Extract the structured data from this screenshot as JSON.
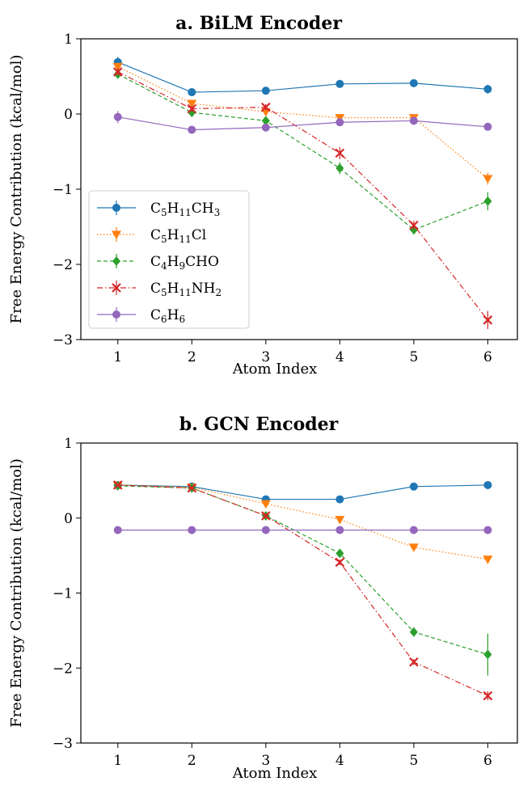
{
  "chart_data": [
    {
      "type": "line",
      "title": "a.  BiLM Encoder",
      "xlabel": "Atom Index",
      "ylabel": "Free Energy Contribution (kcal/mol)",
      "xlim": [
        0.5,
        6.4
      ],
      "ylim": [
        -3,
        1
      ],
      "xticks": [
        "1",
        "2",
        "3",
        "4",
        "5",
        "6"
      ],
      "yticks": [
        "1",
        "0",
        "−1",
        "−2",
        "−3"
      ],
      "x": [
        1,
        2,
        3,
        4,
        5,
        6
      ],
      "legend": "lower-left",
      "series": [
        {
          "name": "C5H11CH3",
          "color": "#1f77b4",
          "marker": "circle",
          "dash": "solid",
          "values": [
            0.69,
            0.29,
            0.31,
            0.4,
            0.41,
            0.33
          ],
          "errors": [
            0.07,
            0.03,
            0.03,
            0.03,
            0.03,
            0.06
          ]
        },
        {
          "name": "C5H11Cl",
          "color": "#ff7f0e",
          "marker": "triangle-down",
          "dash": "dotted",
          "values": [
            0.63,
            0.14,
            0.03,
            -0.05,
            -0.05,
            -0.86
          ],
          "errors": [
            0.05,
            0.04,
            0.05,
            0.04,
            0.03,
            0.08
          ]
        },
        {
          "name": "C4H9CHO",
          "color": "#2ca02c",
          "marker": "diamond",
          "dash": "dashed",
          "values": [
            0.53,
            0.02,
            -0.09,
            -0.72,
            -1.54,
            -1.16
          ],
          "errors": [
            0.05,
            0.04,
            0.04,
            0.08,
            0.06,
            0.12
          ]
        },
        {
          "name": "C5H11NH2",
          "color": "#d62728",
          "marker": "x",
          "dash": "dashdot",
          "values": [
            0.56,
            0.07,
            0.09,
            -0.52,
            -1.48,
            -2.74
          ],
          "errors": [
            0.05,
            0.04,
            0.04,
            0.08,
            0.06,
            0.12
          ]
        },
        {
          "name": "C6H6",
          "color": "#9467bd",
          "marker": "circle",
          "dash": "solid",
          "values": [
            -0.04,
            -0.21,
            -0.18,
            -0.11,
            -0.09,
            -0.17
          ],
          "errors": [
            0.08,
            0.04,
            0.03,
            0.03,
            0.03,
            0.04
          ]
        }
      ]
    },
    {
      "type": "line",
      "title": "b.  GCN Encoder",
      "xlabel": "Atom Index",
      "ylabel": "Free Energy Contribution (kcal/mol)",
      "xlim": [
        0.5,
        6.4
      ],
      "ylim": [
        -3,
        1
      ],
      "xticks": [
        "1",
        "2",
        "3",
        "4",
        "5",
        "6"
      ],
      "yticks": [
        "1",
        "0",
        "−1",
        "−2",
        "−3"
      ],
      "x": [
        1,
        2,
        3,
        4,
        5,
        6
      ],
      "series": [
        {
          "name": "C5H11CH3",
          "color": "#1f77b4",
          "marker": "circle",
          "dash": "solid",
          "values": [
            0.44,
            0.42,
            0.25,
            0.25,
            0.42,
            0.44
          ],
          "errors": [
            0.02,
            0.02,
            0.02,
            0.02,
            0.02,
            0.02
          ]
        },
        {
          "name": "C5H11Cl",
          "color": "#ff7f0e",
          "marker": "triangle-down",
          "dash": "dotted",
          "values": [
            0.44,
            0.41,
            0.19,
            -0.02,
            -0.39,
            -0.55
          ],
          "errors": [
            0.02,
            0.02,
            0.02,
            0.02,
            0.02,
            0.02
          ]
        },
        {
          "name": "C4H9CHO",
          "color": "#2ca02c",
          "marker": "diamond",
          "dash": "dashed",
          "values": [
            0.43,
            0.4,
            0.03,
            -0.47,
            -1.52,
            -1.82
          ],
          "errors": [
            0.02,
            0.02,
            0.03,
            0.05,
            0.06,
            0.28
          ]
        },
        {
          "name": "C5H11NH2",
          "color": "#d62728",
          "marker": "x",
          "dash": "dashdot",
          "values": [
            0.44,
            0.4,
            0.03,
            -0.59,
            -1.92,
            -2.37
          ],
          "errors": [
            0.02,
            0.02,
            0.03,
            0.04,
            0.04,
            0.06
          ]
        },
        {
          "name": "C6H6",
          "color": "#9467bd",
          "marker": "circle",
          "dash": "solid",
          "values": [
            -0.16,
            -0.16,
            -0.16,
            -0.16,
            -0.16,
            -0.16
          ],
          "errors": [
            0.01,
            0.01,
            0.01,
            0.01,
            0.01,
            0.01
          ]
        }
      ]
    }
  ],
  "legend_labels": [
    {
      "base": "C",
      "sub1": "5",
      "mid": "H",
      "sub2": "11",
      "tail": "CH",
      "sub3": "3"
    },
    {
      "base": "C",
      "sub1": "5",
      "mid": "H",
      "sub2": "11",
      "tail": "Cl",
      "sub3": ""
    },
    {
      "base": "C",
      "sub1": "4",
      "mid": "H",
      "sub2": "9",
      "tail": "CHO",
      "sub3": ""
    },
    {
      "base": "C",
      "sub1": "5",
      "mid": "H",
      "sub2": "11",
      "tail": "NH",
      "sub3": "2"
    },
    {
      "base": "C",
      "sub1": "6",
      "mid": "H",
      "sub2": "6",
      "tail": "",
      "sub3": ""
    }
  ]
}
